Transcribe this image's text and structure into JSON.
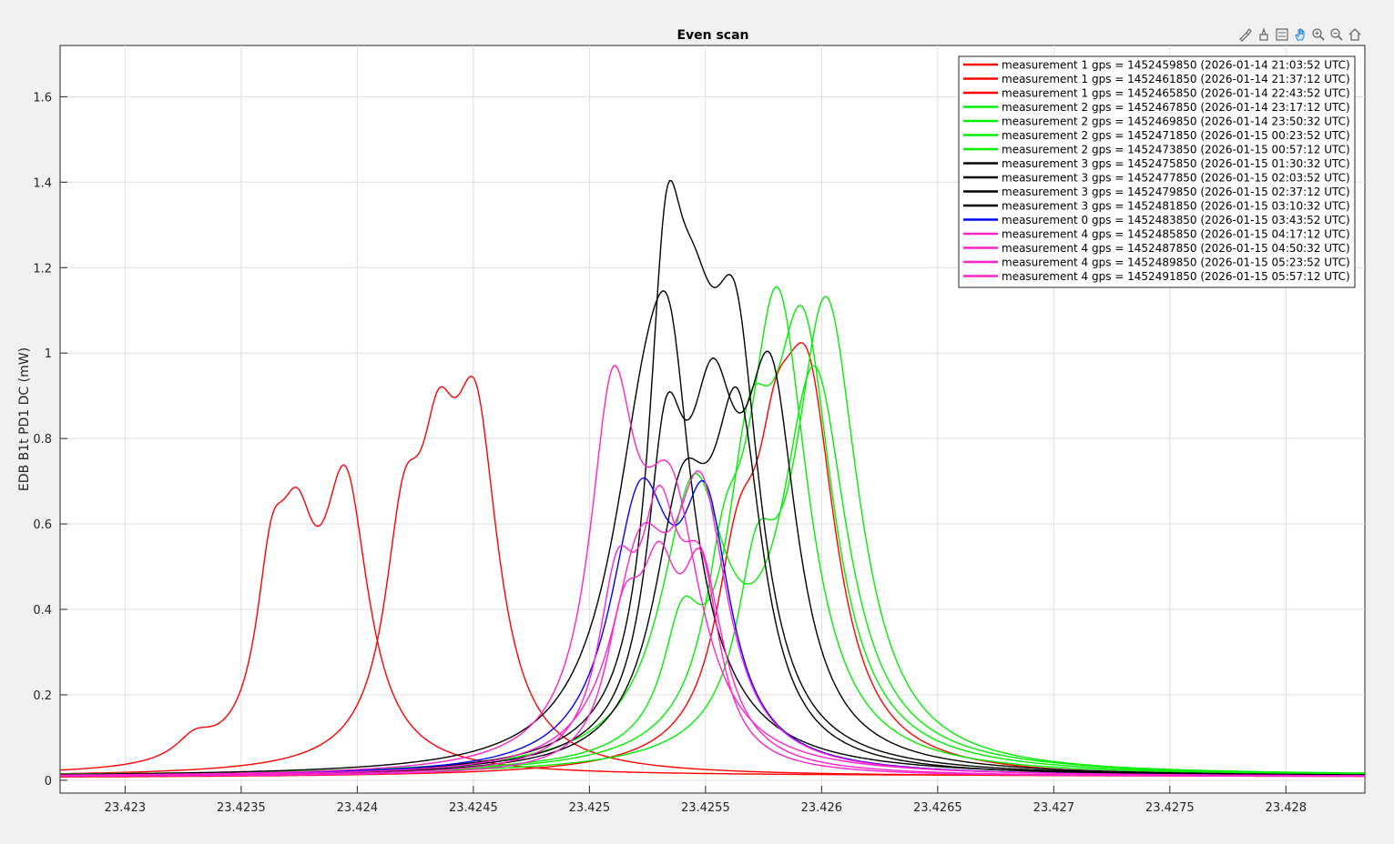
{
  "toolbar": {
    "icons": [
      "brush-icon",
      "data-tips-icon",
      "legend-toggle-icon",
      "pan-hand-icon",
      "zoom-in-icon",
      "zoom-out-icon",
      "home-icon"
    ]
  },
  "chart_data": {
    "type": "line",
    "title": "Even scan",
    "xlabel": "",
    "ylabel": "EDB B1t PD1 DC (mW)",
    "xlim": [
      23.42272,
      23.42834
    ],
    "ylim": [
      -0.03,
      1.72
    ],
    "xticks": [
      "23.423",
      "23.4235",
      "23.424",
      "23.4245",
      "23.425",
      "23.4255",
      "23.426",
      "23.4265",
      "23.427",
      "23.4275",
      "23.428"
    ],
    "xtick_values": [
      23.423,
      23.4235,
      23.424,
      23.4245,
      23.425,
      23.4255,
      23.426,
      23.4265,
      23.427,
      23.4275,
      23.428
    ],
    "yticks": [
      "0",
      "0.2",
      "0.4",
      "0.6",
      "0.8",
      "1",
      "1.2",
      "1.4",
      "1.6"
    ],
    "ytick_values": [
      0,
      0.2,
      0.4,
      0.6,
      0.8,
      1,
      1.2,
      1.4,
      1.6
    ],
    "grid": true,
    "legend_position": "top-right",
    "series": [
      {
        "name": "measurement 1 gps = 1452459850 (2026-01-14 21:03:52 UTC)",
        "color": "#ff0000",
        "base": 0.01,
        "peaks": [
          [
            23.42395,
            0.63,
            0.00012
          ],
          [
            23.42363,
            0.34,
            8e-05
          ],
          [
            23.42374,
            0.4,
            0.0001
          ],
          [
            23.4233,
            0.05,
            0.0001
          ]
        ]
      },
      {
        "name": "measurement 1 gps = 1452461850 (2026-01-14 21:37:12 UTC)",
        "color": "#ff0000",
        "base": 0.008,
        "peaks": [
          [
            23.42451,
            0.74,
            0.00012
          ],
          [
            23.4242,
            0.46,
            0.0001
          ],
          [
            23.42435,
            0.5,
            0.0001
          ]
        ]
      },
      {
        "name": "measurement 1 gps = 1452465850 (2026-01-14 22:43:52 UTC)",
        "color": "#ff0000",
        "base": 0.005,
        "peaks": [
          [
            23.42594,
            0.83,
            0.00015
          ],
          [
            23.42564,
            0.38,
            0.00012
          ],
          [
            23.4258,
            0.35,
            0.0001
          ]
        ]
      },
      {
        "name": "measurement 2 gps = 1452467850 (2026-01-14 23:17:12 UTC)",
        "color": "#00ee00",
        "base": 0.01,
        "peaks": [
          [
            23.42581,
            1.1,
            0.00016
          ],
          [
            23.42558,
            0.28,
            0.0001
          ]
        ]
      },
      {
        "name": "measurement 2 gps = 1452469850 (2026-01-14 23:50:32 UTC)",
        "color": "#00ee00",
        "base": 0.01,
        "peaks": [
          [
            23.42602,
            1.09,
            0.00017
          ],
          [
            23.42572,
            0.32,
            0.0001
          ]
        ]
      },
      {
        "name": "measurement 2 gps = 1452471850 (2026-01-15 00:23:52 UTC)",
        "color": "#00ee00",
        "base": 0.01,
        "peaks": [
          [
            23.42592,
            0.97,
            0.00016
          ],
          [
            23.42569,
            0.55,
            0.00012
          ],
          [
            23.4254,
            0.25,
            0.0001
          ]
        ]
      },
      {
        "name": "measurement 2 gps = 1452473850 (2026-01-15 00:57:12 UTC)",
        "color": "#00ee00",
        "base": 0.01,
        "peaks": [
          [
            23.42597,
            0.9,
            0.00017
          ],
          [
            23.42545,
            0.62,
            0.00017
          ]
        ]
      },
      {
        "name": "measurement 3 gps = 1452475850 (2026-01-15 01:30:32 UTC)",
        "color": "#000000",
        "base": 0.008,
        "peaks": [
          [
            23.42526,
            0.84,
            0.0002
          ],
          [
            23.42535,
            0.4,
            0.0001
          ]
        ]
      },
      {
        "name": "measurement 3 gps = 1452477850 (2026-01-15 02:03:52 UTC)",
        "color": "#000000",
        "base": 0.008,
        "peaks": [
          [
            23.42533,
            0.89,
            9e-05
          ],
          [
            23.42563,
            0.86,
            0.00013
          ],
          [
            23.42545,
            0.63,
            0.00013
          ]
        ]
      },
      {
        "name": "measurement 3 gps = 1452479850 (2026-01-15 02:37:12 UTC)",
        "color": "#000000",
        "base": 0.008,
        "peaks": [
          [
            23.42578,
            0.82,
            0.00014
          ],
          [
            23.42553,
            0.66,
            0.00013
          ],
          [
            23.42533,
            0.62,
            0.0001
          ]
        ]
      },
      {
        "name": "measurement 3 gps = 1452481850 (2026-01-15 03:10:32 UTC)",
        "color": "#000000",
        "base": 0.008,
        "peaks": [
          [
            23.42564,
            0.75,
            0.00013
          ],
          [
            23.4254,
            0.56,
            0.00015
          ]
        ]
      },
      {
        "name": "measurement 0 gps = 1452483850 (2026-01-15 03:43:52 UTC)",
        "color": "#0000ff",
        "base": 0.008,
        "peaks": [
          [
            23.42522,
            0.6,
            0.00016
          ],
          [
            23.4255,
            0.54,
            0.00013
          ]
        ]
      },
      {
        "name": "measurement 4 gps = 1452485850 (2026-01-15 04:17:12 UTC)",
        "color": "#ff22cc",
        "base": 0.008,
        "peaks": [
          [
            23.4251,
            0.79,
            0.00012
          ],
          [
            23.42535,
            0.58,
            0.00016
          ]
        ]
      },
      {
        "name": "measurement 4 gps = 1452487850 (2026-01-15 04:50:32 UTC)",
        "color": "#ff22cc",
        "base": 0.008,
        "peaks": [
          [
            23.42548,
            0.6,
            0.00014
          ],
          [
            23.42522,
            0.45,
            0.00015
          ]
        ]
      },
      {
        "name": "measurement 4 gps = 1452489850 (2026-01-15 05:23:52 UTC)",
        "color": "#ff22cc",
        "base": 0.008,
        "peaks": [
          [
            23.4253,
            0.47,
            0.0001
          ],
          [
            23.42512,
            0.38,
            0.0001
          ],
          [
            23.42548,
            0.4,
            0.00012
          ]
        ]
      },
      {
        "name": "measurement 4 gps = 1452491850 (2026-01-15 05:57:12 UTC)",
        "color": "#ff22cc",
        "base": 0.008,
        "peaks": [
          [
            23.42548,
            0.42,
            0.0001
          ],
          [
            23.4253,
            0.36,
            0.0001
          ],
          [
            23.42515,
            0.3,
            0.0001
          ]
        ]
      }
    ]
  }
}
